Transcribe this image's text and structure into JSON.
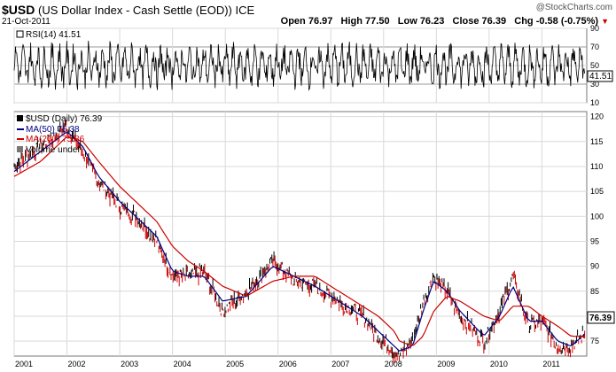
{
  "header": {
    "symbol": "$USD",
    "name": "(US Dollar Index - Cash Settle (EOD))",
    "exchange": "ICE",
    "date": "21-Oct-2011",
    "watermark": "@StockCharts.com",
    "open_label": "Open",
    "open": "76.97",
    "high_label": "High",
    "high": "77.50",
    "low_label": "Low",
    "low": "76.23",
    "close_label": "Close",
    "close": "76.39",
    "chg_label": "Chg",
    "chg": "-0.58 (-0.75%)"
  },
  "rsi_panel": {
    "legend": "RSI(14) 41.51",
    "value_tag": "41.51",
    "ticks": [
      "90",
      "70",
      "50",
      "30",
      "10"
    ]
  },
  "price_panel": {
    "legend_main": "$USD (Daily) 76.39",
    "legend_ma50": "MA(50) 76.38",
    "legend_ma200": "MA(200) 75.86",
    "legend_vol": "Volume undef",
    "value_tag": "76.39",
    "ticks": [
      "120",
      "115",
      "110",
      "105",
      "100",
      "95",
      "90",
      "85",
      "80",
      "75"
    ]
  },
  "x_axis": {
    "labels": [
      "2001",
      "2002",
      "2003",
      "2004",
      "2005",
      "2006",
      "2007",
      "2008",
      "2009",
      "2010",
      "2011"
    ]
  },
  "colors": {
    "price": "#000000",
    "down": "#cc0000",
    "ma50": "#000080",
    "ma200": "#cc0000",
    "grid": "#d9d9d9"
  },
  "chart_data": [
    {
      "type": "line",
      "title": "RSI(14) 41.51",
      "ylim": [
        10,
        90
      ],
      "series": [
        {
          "name": "RSI(14)",
          "last": 41.51
        }
      ],
      "reference_lines": [
        70,
        30
      ]
    },
    {
      "type": "line",
      "title": "$USD (Daily) 76.39",
      "ylim": [
        72,
        121
      ],
      "x": [
        2001.0,
        2001.5,
        2002.0,
        2002.3,
        2002.6,
        2003.0,
        2003.3,
        2003.7,
        2004.0,
        2004.3,
        2004.6,
        2004.95,
        2005.4,
        2005.9,
        2006.3,
        2006.7,
        2007.0,
        2007.3,
        2007.6,
        2007.9,
        2008.2,
        2008.3,
        2008.55,
        2008.75,
        2008.95,
        2009.2,
        2009.45,
        2009.9,
        2010.2,
        2010.45,
        2010.75,
        2011.0,
        2011.3,
        2011.55,
        2011.81
      ],
      "series": [
        {
          "name": "$USD (Daily)",
          "values": [
            110,
            114,
            118,
            113,
            107,
            102,
            100,
            95,
            88,
            88,
            89,
            81,
            85,
            91,
            87,
            86,
            84,
            82,
            80,
            76,
            73,
            72,
            75,
            83,
            88,
            85,
            80,
            75,
            81,
            88,
            78,
            79,
            74,
            74,
            76.39
          ]
        },
        {
          "name": "MA(50)",
          "values": [
            109,
            113,
            117,
            114,
            108,
            103,
            100,
            96,
            89,
            88,
            88,
            83,
            84,
            90,
            88,
            86,
            84,
            82,
            80,
            77,
            74,
            73,
            74,
            81,
            87,
            85,
            81,
            76,
            80,
            86,
            79,
            79,
            75,
            74,
            76.38
          ]
        },
        {
          "name": "MA(200)",
          "values": [
            108,
            111,
            116,
            115,
            111,
            106,
            103,
            99,
            94,
            91,
            89,
            86,
            84,
            87,
            88,
            88,
            86,
            84,
            82,
            80,
            77,
            75,
            74,
            76,
            81,
            84,
            83,
            80,
            79,
            82,
            82,
            80,
            78,
            76,
            75.86
          ]
        }
      ]
    }
  ]
}
